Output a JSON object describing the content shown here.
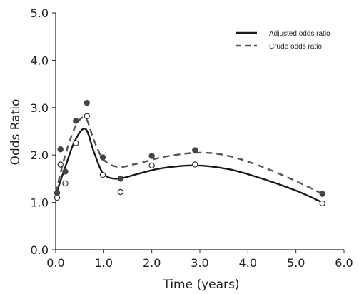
{
  "chart_data": {
    "type": "scatter",
    "xlabel": "Time (years)",
    "ylabel": "Odds Ratio",
    "xlim": [
      0.0,
      6.0
    ],
    "ylim": [
      0.0,
      5.0
    ],
    "xticks": [
      "0.0",
      "1.0",
      "2.0",
      "3.0",
      "4.0",
      "5.0",
      "6.0"
    ],
    "yticks": [
      "0.0",
      "1.0",
      "2.0",
      "3.0",
      "4.0",
      "5.0"
    ],
    "grid": false,
    "legend_position": "top-right",
    "series": [
      {
        "name": "Adjusted odds ratio",
        "line_style": "solid",
        "marker": "open-circle",
        "color": "#1a1a1a",
        "points": [
          [
            0.03,
            1.1
          ],
          [
            0.1,
            1.8
          ],
          [
            0.2,
            1.4
          ],
          [
            0.42,
            2.25
          ],
          [
            0.65,
            2.82
          ],
          [
            0.98,
            1.58
          ],
          [
            1.35,
            1.22
          ],
          [
            2.0,
            1.78
          ],
          [
            2.9,
            1.8
          ],
          [
            5.55,
            0.98
          ]
        ],
        "curve": [
          [
            0.0,
            1.15
          ],
          [
            0.2,
            1.75
          ],
          [
            0.4,
            2.3
          ],
          [
            0.62,
            2.55
          ],
          [
            0.8,
            2.05
          ],
          [
            1.0,
            1.6
          ],
          [
            1.3,
            1.5
          ],
          [
            1.7,
            1.6
          ],
          [
            2.2,
            1.72
          ],
          [
            2.9,
            1.78
          ],
          [
            3.6,
            1.7
          ],
          [
            4.3,
            1.5
          ],
          [
            5.0,
            1.25
          ],
          [
            5.55,
            1.0
          ]
        ]
      },
      {
        "name": "Crude odds ratio",
        "line_style": "dashed",
        "marker": "filled-circle",
        "color": "#555555",
        "points": [
          [
            0.03,
            1.2
          ],
          [
            0.1,
            2.12
          ],
          [
            0.2,
            1.65
          ],
          [
            0.42,
            2.72
          ],
          [
            0.65,
            3.1
          ],
          [
            0.98,
            1.95
          ],
          [
            1.35,
            1.5
          ],
          [
            2.0,
            1.98
          ],
          [
            2.9,
            2.1
          ],
          [
            5.55,
            1.18
          ]
        ],
        "curve": [
          [
            0.0,
            1.2
          ],
          [
            0.2,
            2.0
          ],
          [
            0.42,
            2.62
          ],
          [
            0.62,
            2.78
          ],
          [
            0.8,
            2.3
          ],
          [
            1.0,
            1.9
          ],
          [
            1.3,
            1.75
          ],
          [
            1.7,
            1.82
          ],
          [
            2.3,
            1.97
          ],
          [
            3.0,
            2.05
          ],
          [
            3.6,
            1.98
          ],
          [
            4.3,
            1.75
          ],
          [
            5.0,
            1.45
          ],
          [
            5.55,
            1.18
          ]
        ]
      }
    ]
  }
}
